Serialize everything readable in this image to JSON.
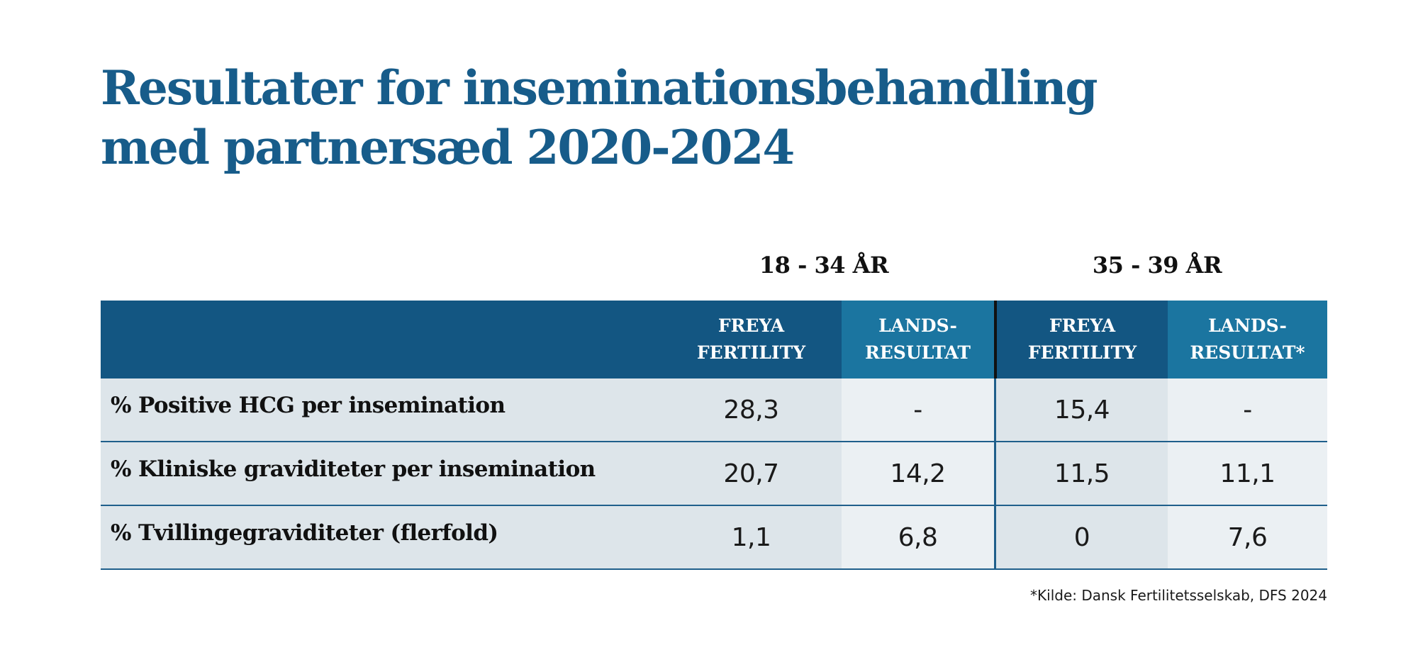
{
  "title": "Resultater for inseminationsbehandling med partnersæd 2020-2024",
  "groups": {
    "g1": "18 - 34 ÅR",
    "g2": "35 - 39 ÅR"
  },
  "headers": {
    "label": "",
    "a": "FREYA\nFERTILITY",
    "b": "LANDS-\nRESULTAT",
    "c": "FREYA\nFERTILITY",
    "d": "LANDS-\nRESULTAT*"
  },
  "rows": [
    {
      "label": "% Positive HCG per insemination",
      "a": "28,3",
      "b": "-",
      "c": "15,4",
      "d": "-"
    },
    {
      "label": "% Kliniske graviditeter per insemination",
      "a": "20,7",
      "b": "14,2",
      "c": "11,5",
      "d": "11,1"
    },
    {
      "label": "% Tvillingegraviditeter (flerfold)",
      "a": "1,1",
      "b": "6,8",
      "c": "0",
      "d": "7,6"
    }
  ],
  "footnote": "*Kilde: Dansk Fertilitetsselskab, DFS 2024",
  "colors": {
    "title": "#175c8a",
    "header_dark": "#135682",
    "header_light": "#1b75a0",
    "row_dark": "#dde5ea",
    "row_light": "#ebf0f3"
  }
}
